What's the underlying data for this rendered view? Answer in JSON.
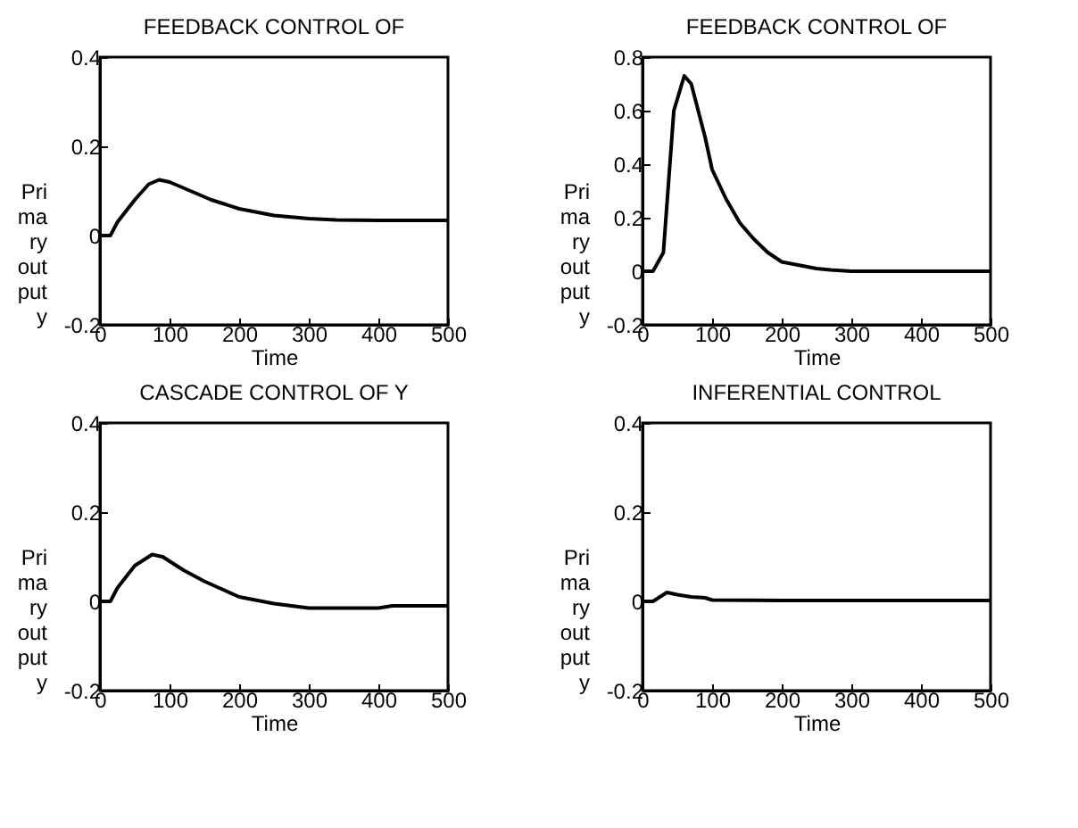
{
  "chart_data": [
    {
      "type": "line",
      "title": "FEEDBACK CONTROL OF",
      "xlabel": "Time",
      "ylabel": "Pri ma ry out put y",
      "xlim": [
        0,
        500
      ],
      "xticks": [
        0,
        100,
        200,
        300,
        400,
        500
      ],
      "ylim": [
        -0.2,
        0.4
      ],
      "yticks": [
        -0.2,
        0,
        0.2,
        0.4
      ],
      "series": [
        {
          "color": "#000000",
          "x": [
            0,
            15,
            25,
            50,
            70,
            85,
            100,
            130,
            160,
            200,
            250,
            300,
            340,
            400,
            500
          ],
          "values": [
            0,
            0,
            0.03,
            0.08,
            0.115,
            0.125,
            0.12,
            0.1,
            0.08,
            0.06,
            0.045,
            0.038,
            0.035,
            0.034,
            0.034
          ]
        }
      ]
    },
    {
      "type": "line",
      "title": "FEEDBACK CONTROL OF",
      "xlabel": "Time",
      "ylabel": "Pri ma ry out put y",
      "xlim": [
        0,
        500
      ],
      "xticks": [
        0,
        100,
        200,
        300,
        400,
        500
      ],
      "ylim": [
        -0.2,
        0.8
      ],
      "yticks": [
        -0.2,
        0,
        0.2,
        0.4,
        0.6,
        0.8
      ],
      "series": [
        {
          "color": "#000000",
          "x": [
            0,
            15,
            30,
            45,
            60,
            70,
            90,
            100,
            120,
            140,
            160,
            180,
            200,
            250,
            270,
            300,
            500
          ],
          "values": [
            0,
            0,
            0.07,
            0.6,
            0.73,
            0.7,
            0.5,
            0.38,
            0.27,
            0.18,
            0.12,
            0.07,
            0.035,
            0.01,
            0.005,
            0,
            0
          ]
        }
      ]
    },
    {
      "type": "line",
      "title": "CASCADE CONTROL OF Y",
      "xlabel": "Time",
      "ylabel": "Pri ma ry out put y",
      "xlim": [
        0,
        500
      ],
      "xticks": [
        0,
        100,
        200,
        300,
        400,
        500
      ],
      "ylim": [
        -0.2,
        0.4
      ],
      "yticks": [
        -0.2,
        0,
        0.2,
        0.4
      ],
      "series": [
        {
          "color": "#000000",
          "x": [
            0,
            15,
            25,
            50,
            75,
            90,
            120,
            150,
            200,
            250,
            300,
            400,
            420,
            500
          ],
          "values": [
            0,
            0,
            0.03,
            0.08,
            0.105,
            0.1,
            0.07,
            0.045,
            0.01,
            -0.005,
            -0.015,
            -0.015,
            -0.01,
            -0.01
          ]
        }
      ]
    },
    {
      "type": "line",
      "title": "INFERENTIAL CONTROL",
      "xlabel": "Time",
      "ylabel": "Pri ma ry out put y",
      "xlim": [
        0,
        500
      ],
      "xticks": [
        0,
        100,
        200,
        300,
        400,
        500
      ],
      "ylim": [
        -0.2,
        0.4
      ],
      "yticks": [
        -0.2,
        0,
        0.2,
        0.4
      ],
      "series": [
        {
          "color": "#000000",
          "x": [
            0,
            15,
            25,
            35,
            50,
            70,
            90,
            100,
            200,
            500
          ],
          "values": [
            0,
            0,
            0.01,
            0.02,
            0.015,
            0.01,
            0.008,
            0.003,
            0.002,
            0.002
          ]
        }
      ]
    }
  ]
}
